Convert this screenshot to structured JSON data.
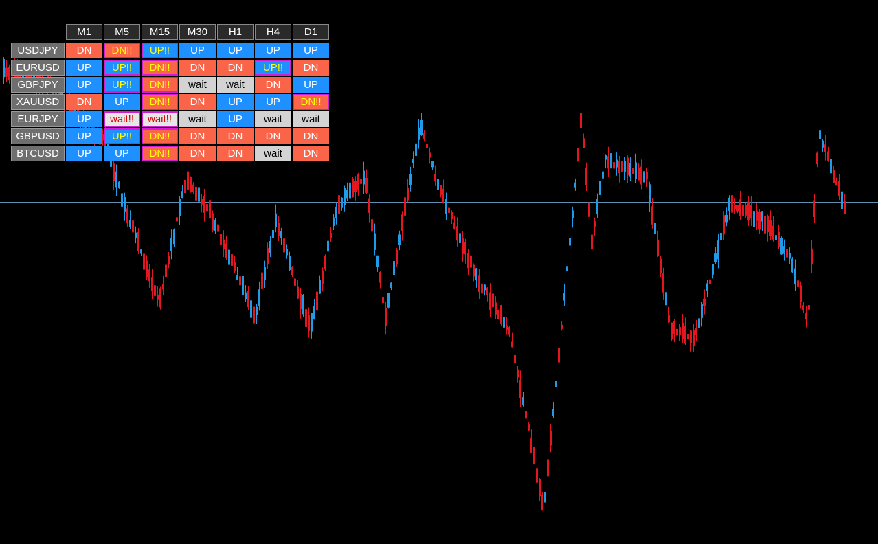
{
  "table": {
    "columns": [
      "M1",
      "M5",
      "M15",
      "M30",
      "H1",
      "H4",
      "D1"
    ],
    "rows": [
      {
        "symbol": "USDJPY",
        "cells": [
          {
            "text": "DN",
            "bg": "#fa6449",
            "fg": "#ffffff",
            "border": "#fa6449"
          },
          {
            "text": "DN!!",
            "bg": "#fa6449",
            "fg": "#ffff00",
            "border": "#d21ed2"
          },
          {
            "text": "UP!!",
            "bg": "#1e90ff",
            "fg": "#ffff00",
            "border": "#d21ed2"
          },
          {
            "text": "UP",
            "bg": "#1e90ff",
            "fg": "#ffffff",
            "border": "#1e90ff"
          },
          {
            "text": "UP",
            "bg": "#1e90ff",
            "fg": "#ffffff",
            "border": "#1e90ff"
          },
          {
            "text": "UP",
            "bg": "#1e90ff",
            "fg": "#ffffff",
            "border": "#1e90ff"
          },
          {
            "text": "UP",
            "bg": "#1e90ff",
            "fg": "#ffffff",
            "border": "#1e90ff"
          }
        ]
      },
      {
        "symbol": "EURUSD",
        "cells": [
          {
            "text": "UP",
            "bg": "#1e90ff",
            "fg": "#ffffff",
            "border": "#1e90ff"
          },
          {
            "text": "UP!!",
            "bg": "#1e90ff",
            "fg": "#ffff00",
            "border": "#d21ed2"
          },
          {
            "text": "DN!!",
            "bg": "#fa6449",
            "fg": "#ffff00",
            "border": "#d21ed2"
          },
          {
            "text": "DN",
            "bg": "#fa6449",
            "fg": "#ffffff",
            "border": "#fa6449"
          },
          {
            "text": "DN",
            "bg": "#fa6449",
            "fg": "#ffffff",
            "border": "#fa6449"
          },
          {
            "text": "UP!!",
            "bg": "#1e90ff",
            "fg": "#ffff00",
            "border": "#d21ed2"
          },
          {
            "text": "DN",
            "bg": "#fa6449",
            "fg": "#ffffff",
            "border": "#fa6449"
          }
        ]
      },
      {
        "symbol": "GBPJPY",
        "cells": [
          {
            "text": "UP",
            "bg": "#1e90ff",
            "fg": "#ffffff",
            "border": "#1e90ff"
          },
          {
            "text": "UP!!",
            "bg": "#1e90ff",
            "fg": "#ffff00",
            "border": "#d21ed2"
          },
          {
            "text": "DN!!",
            "bg": "#fa6449",
            "fg": "#ffff00",
            "border": "#d21ed2"
          },
          {
            "text": "wait",
            "bg": "#d3d3d3",
            "fg": "#000000",
            "border": "#d3d3d3"
          },
          {
            "text": "wait",
            "bg": "#d3d3d3",
            "fg": "#000000",
            "border": "#d3d3d3"
          },
          {
            "text": "DN",
            "bg": "#fa6449",
            "fg": "#ffffff",
            "border": "#fa6449"
          },
          {
            "text": "UP",
            "bg": "#1e90ff",
            "fg": "#ffffff",
            "border": "#1e90ff"
          }
        ]
      },
      {
        "symbol": "XAUUSD",
        "cells": [
          {
            "text": "DN",
            "bg": "#fa6449",
            "fg": "#ffffff",
            "border": "#fa6449"
          },
          {
            "text": "UP",
            "bg": "#1e90ff",
            "fg": "#ffffff",
            "border": "#1e90ff"
          },
          {
            "text": "DN!!",
            "bg": "#fa6449",
            "fg": "#ffff00",
            "border": "#d21ed2"
          },
          {
            "text": "DN",
            "bg": "#fa6449",
            "fg": "#ffffff",
            "border": "#fa6449"
          },
          {
            "text": "UP",
            "bg": "#1e90ff",
            "fg": "#ffffff",
            "border": "#1e90ff"
          },
          {
            "text": "UP",
            "bg": "#1e90ff",
            "fg": "#ffffff",
            "border": "#1e90ff"
          },
          {
            "text": "DN!!",
            "bg": "#fa6449",
            "fg": "#ffff00",
            "border": "#d21ed2"
          }
        ]
      },
      {
        "symbol": "EURJPY",
        "cells": [
          {
            "text": "UP",
            "bg": "#1e90ff",
            "fg": "#ffffff",
            "border": "#1e90ff"
          },
          {
            "text": "wait!!",
            "bg": "#e6e6e6",
            "fg": "#e00000",
            "border": "#d21ed2"
          },
          {
            "text": "wait!!",
            "bg": "#e6e6e6",
            "fg": "#e00000",
            "border": "#d21ed2"
          },
          {
            "text": "wait",
            "bg": "#d3d3d3",
            "fg": "#000000",
            "border": "#d3d3d3"
          },
          {
            "text": "UP",
            "bg": "#1e90ff",
            "fg": "#ffffff",
            "border": "#1e90ff"
          },
          {
            "text": "wait",
            "bg": "#d3d3d3",
            "fg": "#000000",
            "border": "#d3d3d3"
          },
          {
            "text": "wait",
            "bg": "#d3d3d3",
            "fg": "#000000",
            "border": "#d3d3d3"
          }
        ]
      },
      {
        "symbol": "GBPUSD",
        "cells": [
          {
            "text": "UP",
            "bg": "#1e90ff",
            "fg": "#ffffff",
            "border": "#1e90ff"
          },
          {
            "text": "UP!!",
            "bg": "#1e90ff",
            "fg": "#ffff00",
            "border": "#d21ed2"
          },
          {
            "text": "DN!!",
            "bg": "#fa6449",
            "fg": "#ffff00",
            "border": "#d21ed2"
          },
          {
            "text": "DN",
            "bg": "#fa6449",
            "fg": "#ffffff",
            "border": "#fa6449"
          },
          {
            "text": "DN",
            "bg": "#fa6449",
            "fg": "#ffffff",
            "border": "#fa6449"
          },
          {
            "text": "DN",
            "bg": "#fa6449",
            "fg": "#ffffff",
            "border": "#fa6449"
          },
          {
            "text": "DN",
            "bg": "#fa6449",
            "fg": "#ffffff",
            "border": "#fa6449"
          }
        ]
      },
      {
        "symbol": "BTCUSD",
        "cells": [
          {
            "text": "UP",
            "bg": "#1e90ff",
            "fg": "#ffffff",
            "border": "#1e90ff"
          },
          {
            "text": "UP",
            "bg": "#1e90ff",
            "fg": "#ffffff",
            "border": "#1e90ff"
          },
          {
            "text": "DN!!",
            "bg": "#fa6449",
            "fg": "#ffff00",
            "border": "#d21ed2"
          },
          {
            "text": "DN",
            "bg": "#fa6449",
            "fg": "#ffffff",
            "border": "#fa6449"
          },
          {
            "text": "DN",
            "bg": "#fa6449",
            "fg": "#ffffff",
            "border": "#fa6449"
          },
          {
            "text": "wait",
            "bg": "#d3d3d3",
            "fg": "#000000",
            "border": "#d3d3d3"
          },
          {
            "text": "DN",
            "bg": "#fa6449",
            "fg": "#ffffff",
            "border": "#fa6449"
          }
        ]
      }
    ]
  }
}
